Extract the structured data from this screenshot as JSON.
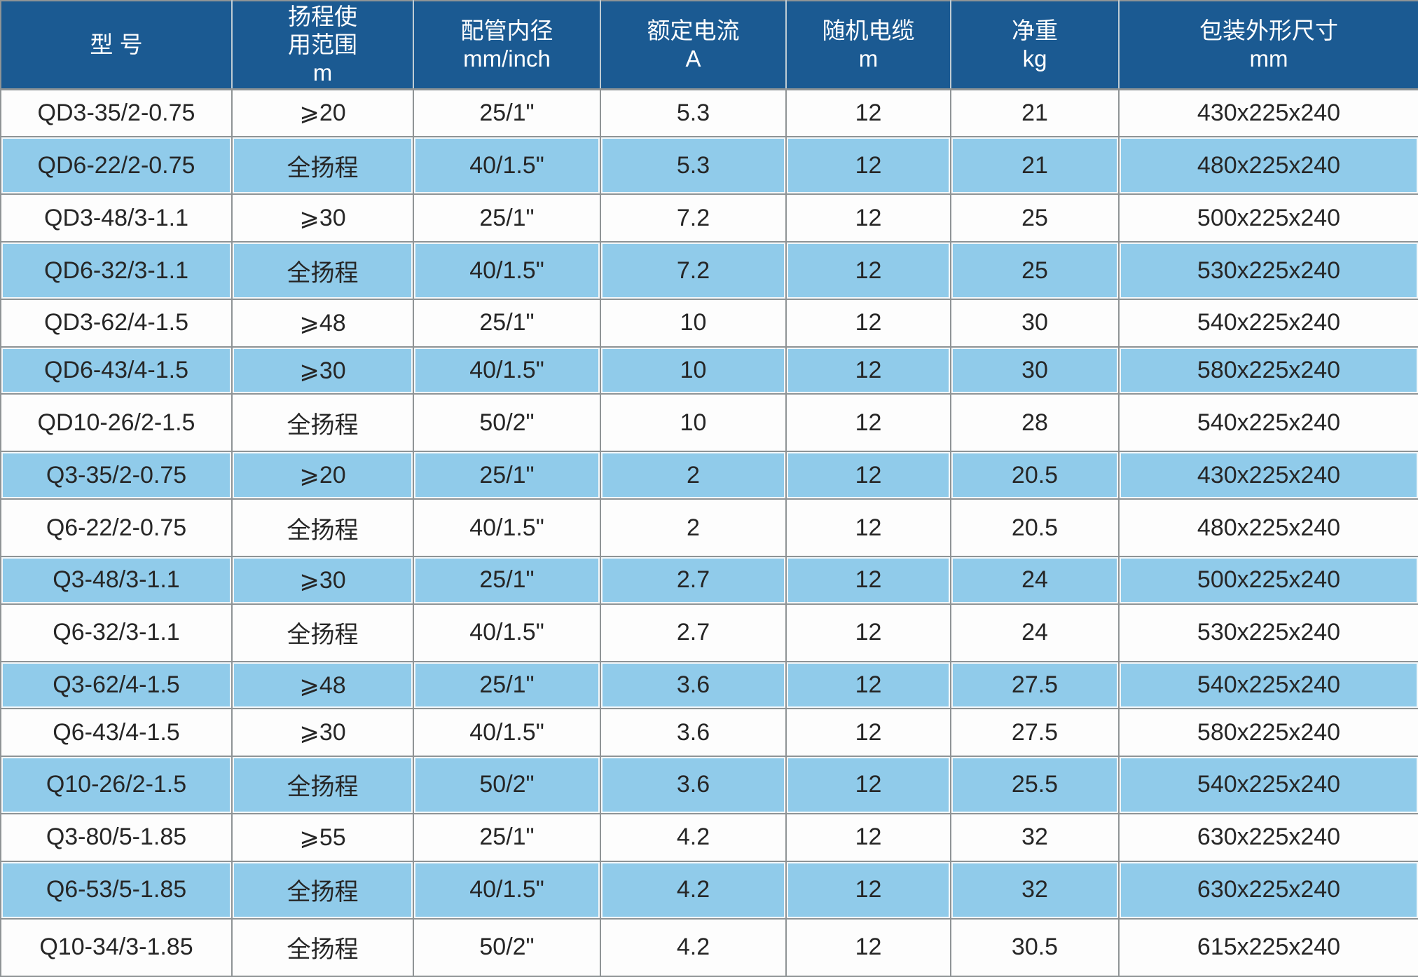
{
  "colors": {
    "header_bg": "#1b5a92",
    "header_text": "#ffffff",
    "row_white": "#fdfdfd",
    "row_blue": "#90cbea",
    "grid": "#8f9496",
    "body_text": "#262626"
  },
  "header": {
    "columns": [
      {
        "line1": "型 号",
        "line2": "",
        "line3": ""
      },
      {
        "line1": "扬程使",
        "line2": "用范围",
        "line3": "m"
      },
      {
        "line1": "配管内径",
        "line2": "mm/inch",
        "line3": ""
      },
      {
        "line1": "额定电流",
        "line2": "A",
        "line3": ""
      },
      {
        "line1": "随机电缆",
        "line2": "m",
        "line3": ""
      },
      {
        "line1": "净重",
        "line2": "kg",
        "line3": ""
      },
      {
        "line1": "包装外形尺寸",
        "line2": "mm",
        "line3": ""
      }
    ]
  },
  "rows": [
    {
      "model": "QD3-35/2-0.75",
      "head_range": "⩾20",
      "pipe_id": "25/1\"",
      "rated_current": "5.3",
      "cable_length": "12",
      "net_weight": "21",
      "package_size": "430x225x240"
    },
    {
      "model": "QD6-22/2-0.75",
      "head_range": "全扬程",
      "pipe_id": "40/1.5\"",
      "rated_current": "5.3",
      "cable_length": "12",
      "net_weight": "21",
      "package_size": "480x225x240"
    },
    {
      "model": "QD3-48/3-1.1",
      "head_range": "⩾30",
      "pipe_id": "25/1\"",
      "rated_current": "7.2",
      "cable_length": "12",
      "net_weight": "25",
      "package_size": "500x225x240"
    },
    {
      "model": "QD6-32/3-1.1",
      "head_range": "全扬程",
      "pipe_id": "40/1.5\"",
      "rated_current": "7.2",
      "cable_length": "12",
      "net_weight": "25",
      "package_size": "530x225x240"
    },
    {
      "model": "QD3-62/4-1.5",
      "head_range": "⩾48",
      "pipe_id": "25/1\"",
      "rated_current": "10",
      "cable_length": "12",
      "net_weight": "30",
      "package_size": "540x225x240"
    },
    {
      "model": "QD6-43/4-1.5",
      "head_range": "⩾30",
      "pipe_id": "40/1.5\"",
      "rated_current": "10",
      "cable_length": "12",
      "net_weight": "30",
      "package_size": "580x225x240"
    },
    {
      "model": "QD10-26/2-1.5",
      "head_range": "全扬程",
      "pipe_id": "50/2\"",
      "rated_current": "10",
      "cable_length": "12",
      "net_weight": "28",
      "package_size": "540x225x240"
    },
    {
      "model": "Q3-35/2-0.75",
      "head_range": "⩾20",
      "pipe_id": "25/1\"",
      "rated_current": "2",
      "cable_length": "12",
      "net_weight": "20.5",
      "package_size": "430x225x240"
    },
    {
      "model": "Q6-22/2-0.75",
      "head_range": "全扬程",
      "pipe_id": "40/1.5\"",
      "rated_current": "2",
      "cable_length": "12",
      "net_weight": "20.5",
      "package_size": "480x225x240"
    },
    {
      "model": "Q3-48/3-1.1",
      "head_range": "⩾30",
      "pipe_id": "25/1\"",
      "rated_current": "2.7",
      "cable_length": "12",
      "net_weight": "24",
      "package_size": "500x225x240"
    },
    {
      "model": "Q6-32/3-1.1",
      "head_range": "全扬程",
      "pipe_id": "40/1.5\"",
      "rated_current": "2.7",
      "cable_length": "12",
      "net_weight": "24",
      "package_size": "530x225x240"
    },
    {
      "model": "Q3-62/4-1.5",
      "head_range": "⩾48",
      "pipe_id": "25/1\"",
      "rated_current": "3.6",
      "cable_length": "12",
      "net_weight": "27.5",
      "package_size": "540x225x240"
    },
    {
      "model": "Q6-43/4-1.5",
      "head_range": "⩾30",
      "pipe_id": "40/1.5\"",
      "rated_current": "3.6",
      "cable_length": "12",
      "net_weight": "27.5",
      "package_size": "580x225x240"
    },
    {
      "model": "Q10-26/2-1.5",
      "head_range": "全扬程",
      "pipe_id": "50/2\"",
      "rated_current": "3.6",
      "cable_length": "12",
      "net_weight": "25.5",
      "package_size": "540x225x240"
    },
    {
      "model": "Q3-80/5-1.85",
      "head_range": "⩾55",
      "pipe_id": "25/1\"",
      "rated_current": "4.2",
      "cable_length": "12",
      "net_weight": "32",
      "package_size": "630x225x240"
    },
    {
      "model": "Q6-53/5-1.85",
      "head_range": "全扬程",
      "pipe_id": "40/1.5\"",
      "rated_current": "4.2",
      "cable_length": "12",
      "net_weight": "32",
      "package_size": "630x225x240"
    },
    {
      "model": "Q10-34/3-1.85",
      "head_range": "全扬程",
      "pipe_id": "50/2\"",
      "rated_current": "4.2",
      "cable_length": "12",
      "net_weight": "30.5",
      "package_size": "615x225x240"
    }
  ]
}
